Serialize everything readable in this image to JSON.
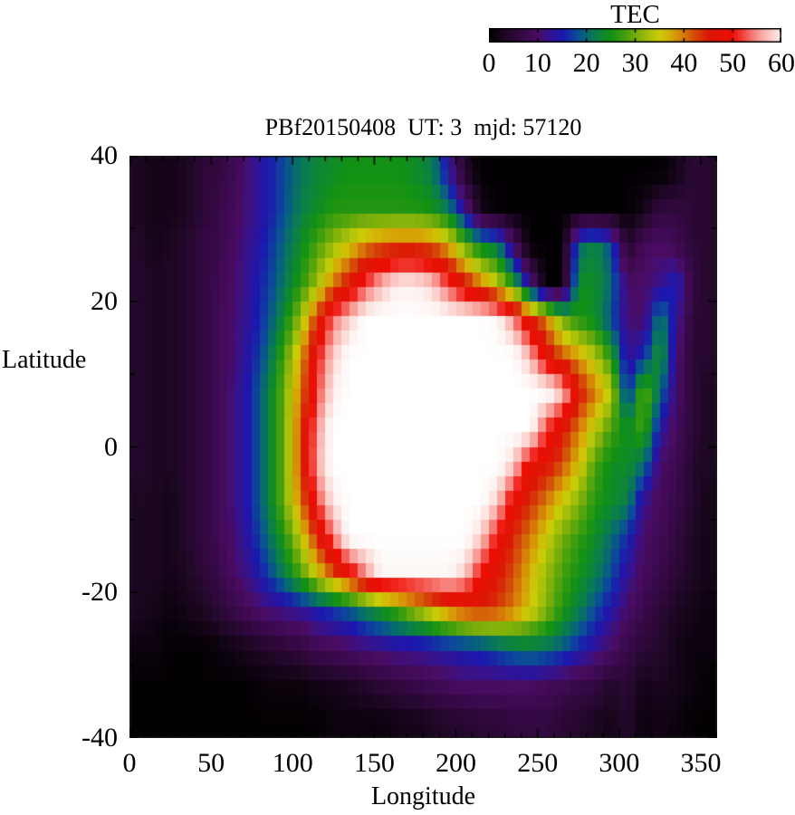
{
  "title": "PBf20150408  UT: 3  mjd: 57120",
  "colorbar": {
    "label": "TEC",
    "min": 0,
    "max": 60,
    "ticks": [
      0,
      10,
      20,
      30,
      40,
      50,
      60
    ]
  },
  "axes": {
    "x": {
      "label": "Longitude",
      "range": [
        0,
        360
      ],
      "major_ticks": [
        0,
        50,
        100,
        150,
        200,
        250,
        300,
        350
      ],
      "minor_tick_step": 10
    },
    "y": {
      "label": "Latitude",
      "range": [
        -40,
        40
      ],
      "major_ticks": [
        40,
        20,
        0,
        -20,
        -40
      ],
      "minor_tick_step": 10
    }
  },
  "chart_data": {
    "type": "heatmap",
    "title": "PBf20150408  UT: 3  mjd: 57120",
    "xlabel": "Longitude",
    "ylabel": "Latitude",
    "value_label": "TEC",
    "xlim": [
      0,
      360
    ],
    "ylim": [
      -40,
      40
    ],
    "vlim": [
      0,
      60
    ],
    "grid": false,
    "lon_bin_centers": [
      5,
      15,
      25,
      35,
      45,
      55,
      65,
      75,
      85,
      95,
      105,
      115,
      125,
      135,
      145,
      155,
      165,
      175,
      185,
      195,
      205,
      215,
      225,
      235,
      245,
      255,
      265,
      275,
      285,
      295,
      305,
      315,
      325,
      335,
      345,
      355
    ],
    "lat_bin_centers": [
      37.5,
      32.5,
      27.5,
      22.5,
      17.5,
      12.5,
      7.5,
      2.5,
      -2.5,
      -7.5,
      -12.5,
      -17.5,
      -22.5,
      -27.5,
      -32.5,
      -37.5
    ],
    "tec_values_rows_north_to_south": [
      [
        3,
        2,
        2,
        3,
        5,
        6,
        8,
        12,
        15,
        18,
        21,
        23,
        24,
        25,
        25,
        25,
        25,
        24,
        22,
        14,
        4,
        0,
        0,
        0,
        0,
        0,
        0,
        0,
        0,
        0,
        0,
        0,
        0,
        2,
        5,
        4
      ],
      [
        3,
        2,
        2,
        3,
        5,
        7,
        9,
        12,
        15,
        18,
        22,
        24,
        26,
        26,
        26,
        26,
        26,
        26,
        25,
        22,
        13,
        2,
        0,
        0,
        0,
        0,
        0,
        0,
        0,
        0,
        0,
        2,
        6,
        6,
        5,
        4
      ],
      [
        4,
        2,
        3,
        4,
        6,
        7,
        10,
        13,
        16,
        20,
        24,
        28,
        32,
        36,
        40,
        42,
        43,
        43,
        42,
        38,
        30,
        24,
        22,
        10,
        0,
        0,
        0,
        20,
        23,
        18,
        4,
        9,
        10,
        8,
        5,
        4
      ],
      [
        4,
        3,
        3,
        4,
        6,
        8,
        10,
        14,
        17,
        21,
        26,
        32,
        40,
        46,
        52,
        57,
        60,
        60,
        58,
        52,
        46,
        40,
        34,
        26,
        12,
        0,
        0,
        24,
        24,
        20,
        10,
        10,
        12,
        16,
        6,
        4
      ],
      [
        4,
        3,
        3,
        4,
        6,
        8,
        11,
        14,
        18,
        24,
        32,
        44,
        54,
        58,
        62,
        62,
        62,
        62,
        62,
        62,
        62,
        62,
        61,
        55,
        46,
        40,
        30,
        26,
        24,
        18,
        11,
        10,
        22,
        13,
        5,
        4
      ],
      [
        4,
        3,
        3,
        4,
        6,
        8,
        11,
        15,
        20,
        28,
        38,
        50,
        58,
        62,
        62,
        62,
        62,
        62,
        62,
        62,
        62,
        62,
        62,
        62,
        57,
        47,
        42,
        38,
        33,
        26,
        12,
        16,
        25,
        11,
        5,
        4
      ],
      [
        4,
        3,
        3,
        4,
        6,
        8,
        12,
        16,
        22,
        30,
        40,
        52,
        60,
        62,
        62,
        62,
        62,
        62,
        62,
        62,
        62,
        62,
        62,
        62,
        62,
        62,
        58,
        46,
        40,
        34,
        15,
        30,
        20,
        10,
        5,
        3
      ],
      [
        4,
        3,
        3,
        4,
        6,
        8,
        12,
        16,
        22,
        30,
        42,
        55,
        62,
        62,
        62,
        62,
        62,
        62,
        62,
        62,
        62,
        62,
        62,
        62,
        62,
        52,
        46,
        40,
        34,
        28,
        24,
        28,
        14,
        9,
        5,
        3
      ],
      [
        4,
        3,
        3,
        4,
        6,
        8,
        12,
        16,
        22,
        30,
        42,
        56,
        62,
        62,
        62,
        62,
        62,
        62,
        62,
        62,
        62,
        62,
        62,
        58,
        48,
        46,
        42,
        36,
        28,
        24,
        24,
        20,
        10,
        8,
        4,
        3
      ],
      [
        3,
        3,
        2,
        4,
        6,
        8,
        12,
        16,
        22,
        30,
        40,
        52,
        60,
        62,
        62,
        62,
        62,
        62,
        62,
        62,
        62,
        62,
        58,
        48,
        44,
        40,
        35,
        31,
        26,
        24,
        22,
        12,
        9,
        7,
        4,
        2
      ],
      [
        3,
        3,
        2,
        4,
        6,
        8,
        11,
        15,
        20,
        26,
        34,
        44,
        54,
        62,
        62,
        62,
        62,
        62,
        62,
        62,
        62,
        58,
        50,
        44,
        40,
        35,
        30,
        27,
        24,
        20,
        16,
        10,
        8,
        6,
        3,
        2
      ],
      [
        3,
        3,
        2,
        3,
        5,
        7,
        10,
        13,
        17,
        22,
        28,
        35,
        42,
        48,
        55,
        61,
        61,
        61,
        61,
        61,
        58,
        50,
        46,
        42,
        37,
        32,
        28,
        25,
        22,
        18,
        13,
        9,
        7,
        5,
        3,
        2
      ],
      [
        3,
        2,
        1,
        2,
        3,
        5,
        7,
        9,
        11,
        12,
        13,
        15,
        17,
        19,
        22,
        25,
        28,
        32,
        36,
        40,
        43,
        44,
        43,
        40,
        36,
        31,
        26,
        22,
        18,
        14,
        10,
        7,
        5,
        3,
        2,
        1
      ],
      [
        1,
        1,
        0,
        0,
        0,
        1,
        2,
        3,
        4,
        5,
        6,
        8,
        9,
        10,
        11,
        12,
        13,
        13,
        14,
        15,
        16,
        17,
        19,
        21,
        22,
        21,
        19,
        16,
        13,
        10,
        7,
        5,
        4,
        2,
        1,
        1
      ],
      [
        0,
        0,
        0,
        0,
        0,
        0,
        0,
        0,
        1,
        1,
        1,
        2,
        2,
        3,
        4,
        5,
        6,
        7,
        8,
        9,
        10,
        10,
        10,
        10,
        10,
        9,
        8,
        7,
        6,
        4,
        5,
        2,
        3,
        2,
        1,
        0
      ],
      [
        0,
        0,
        0,
        0,
        0,
        0,
        0,
        0,
        0,
        0,
        0,
        0,
        1,
        1,
        1,
        1,
        2,
        2,
        3,
        4,
        4,
        5,
        5,
        6,
        6,
        6,
        5,
        4,
        3,
        2,
        4,
        1,
        2,
        1,
        0,
        0
      ]
    ],
    "palette_stops": [
      [
        0,
        "#030003"
      ],
      [
        3,
        "#1c0722"
      ],
      [
        5,
        "#2c0837"
      ],
      [
        8,
        "#3f0a53"
      ],
      [
        10,
        "#4a0c63"
      ],
      [
        12,
        "#391289"
      ],
      [
        15,
        "#1c17ae"
      ],
      [
        18,
        "#0b4b9a"
      ],
      [
        20,
        "#076a70"
      ],
      [
        22,
        "#0b7f4a"
      ],
      [
        25,
        "#129114"
      ],
      [
        28,
        "#46a00e"
      ],
      [
        30,
        "#74ac0b"
      ],
      [
        33,
        "#abc20a"
      ],
      [
        35,
        "#cbcc08"
      ],
      [
        37,
        "#d5b106"
      ],
      [
        40,
        "#d77a08"
      ],
      [
        42,
        "#d44f0a"
      ],
      [
        45,
        "#dc1806"
      ],
      [
        50,
        "#ec0d04"
      ],
      [
        52,
        "#f23f38"
      ],
      [
        55,
        "#f8928c"
      ],
      [
        57,
        "#fbbcb7"
      ],
      [
        60,
        "#fdf0ee"
      ],
      [
        62,
        "#ffffff"
      ]
    ],
    "legend_position": "top-right colorbar"
  }
}
